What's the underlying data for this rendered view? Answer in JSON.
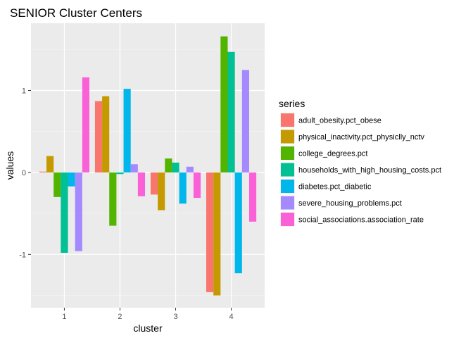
{
  "chart_data": {
    "type": "bar",
    "title": "SENIOR Cluster Centers",
    "xlabel": "cluster",
    "ylabel": "values",
    "categories": [
      "1",
      "2",
      "3",
      "4"
    ],
    "yticks": [
      {
        "value": -1,
        "label": "-1"
      },
      {
        "value": 0,
        "label": "0"
      },
      {
        "value": 1,
        "label": "1"
      }
    ],
    "ylim": [
      -1.65,
      1.82
    ],
    "grid": true,
    "panel_background": "#ebebeb",
    "legend_title": "series",
    "legend_position": "right",
    "series": [
      {
        "name": "adult_obesity.pct_obese",
        "color": "#F8766D",
        "values": [
          0.01,
          0.87,
          -0.27,
          -1.46
        ]
      },
      {
        "name": "physical_inactivity.pct_physiclly_nctv",
        "color": "#C49A00",
        "values": [
          0.2,
          0.93,
          -0.46,
          -1.5
        ]
      },
      {
        "name": "college_degrees.pct",
        "color": "#53B400",
        "values": [
          -0.3,
          -0.65,
          0.17,
          1.66
        ]
      },
      {
        "name": "households_with_high_housing_costs.pct",
        "color": "#00C094",
        "values": [
          -0.98,
          -0.02,
          0.12,
          1.47
        ]
      },
      {
        "name": "diabetes.pct_diabetic",
        "color": "#00B6EB",
        "values": [
          -0.17,
          1.02,
          -0.38,
          -1.23
        ]
      },
      {
        "name": "severe_housing_problems.pct",
        "color": "#A58AFF",
        "values": [
          -0.96,
          0.1,
          0.07,
          1.25
        ]
      },
      {
        "name": "social_associations.association_rate",
        "color": "#FB61D7",
        "values": [
          1.16,
          -0.29,
          -0.31,
          -0.6
        ]
      }
    ]
  }
}
